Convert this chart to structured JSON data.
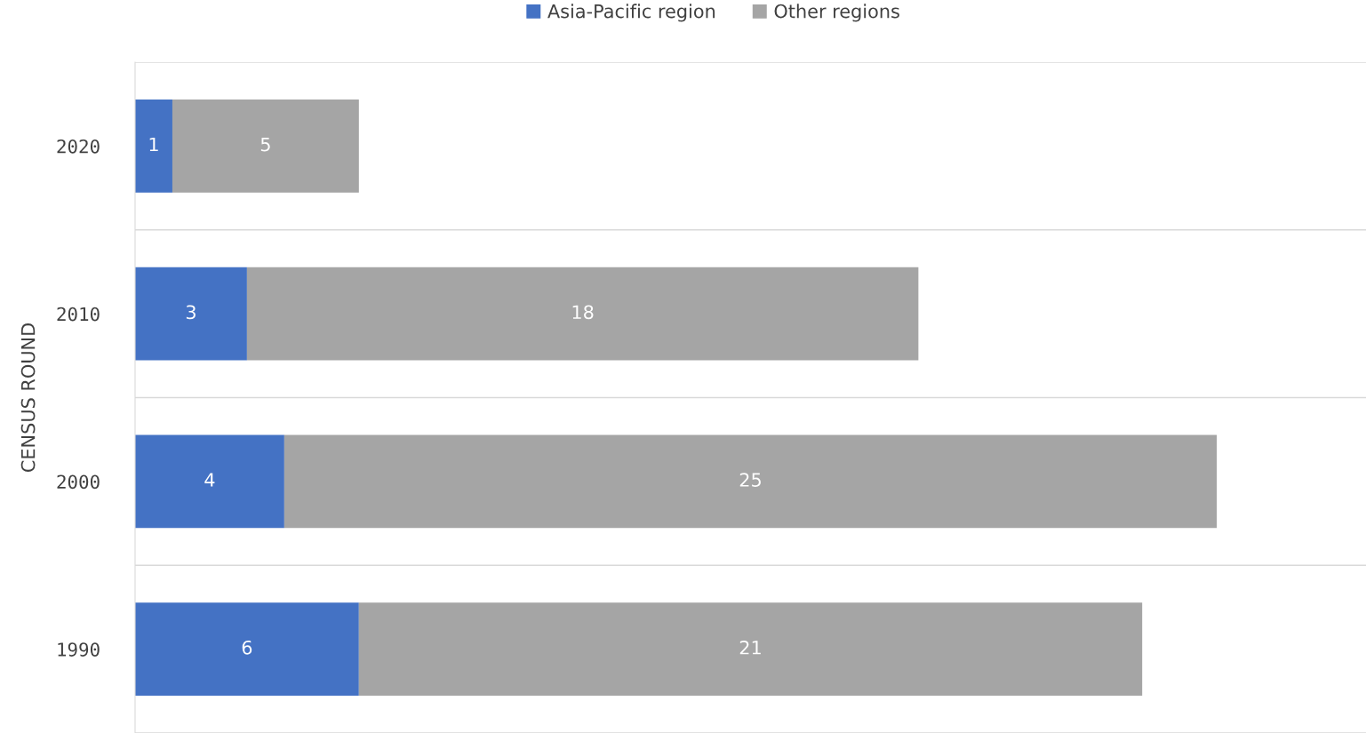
{
  "chart_data": {
    "type": "bar",
    "orientation": "horizontal",
    "stacked": true,
    "ylabel": "CENSUS ROUND",
    "categories": [
      "2020",
      "2010",
      "2000",
      "1990"
    ],
    "series": [
      {
        "name": "Asia-Pacific region",
        "color": "#4472c4",
        "values": [
          1,
          3,
          4,
          6
        ]
      },
      {
        "name": "Other regions",
        "color": "#a5a5a5",
        "values": [
          5,
          18,
          25,
          21
        ]
      }
    ],
    "xlim": [
      0,
      33
    ],
    "data_labels": true,
    "grid": "y",
    "legend": "top",
    "tick_labels": "y"
  }
}
